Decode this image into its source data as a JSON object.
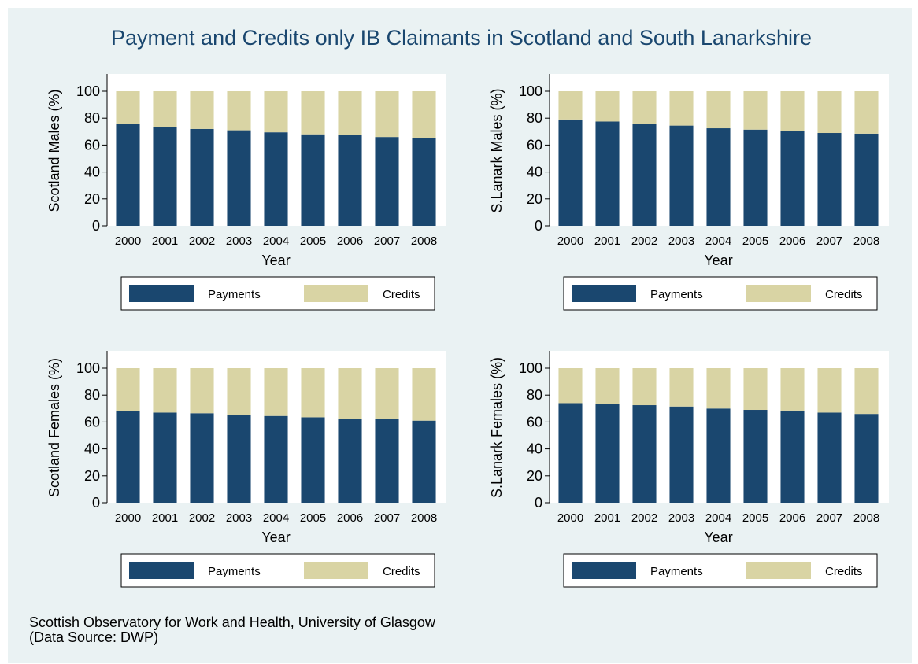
{
  "page": {
    "title": "Payment and Credits only IB Claimants in Scotland and South Lanarkshire"
  },
  "footer": {
    "line1": "Scottish Observatory for Work and Health, University of Glasgow",
    "line2": "(Data Source: DWP)"
  },
  "colors": {
    "payments": "#1a476f",
    "credits": "#d9d4a4",
    "background": "#eaf2f3",
    "title": "#1a476f"
  },
  "chart_data": [
    {
      "type": "bar",
      "stacked": true,
      "panel": "scotland-males",
      "categories": [
        "2000",
        "2001",
        "2002",
        "2003",
        "2004",
        "2005",
        "2006",
        "2007",
        "2008"
      ],
      "series": [
        {
          "name": "Payments",
          "values": [
            75.5,
            73.5,
            72,
            71,
            69.5,
            68,
            67.5,
            66,
            65.5
          ]
        },
        {
          "name": "Credits",
          "values": [
            24.5,
            26.5,
            28,
            29,
            30.5,
            32,
            32.5,
            34,
            34.5
          ]
        }
      ],
      "xlabel": "Year",
      "ylabel": "Scotland Males (%)",
      "yticks": [
        0,
        20,
        40,
        60,
        80,
        100
      ],
      "ylim": [
        0,
        100
      ],
      "legend": "bottom"
    },
    {
      "type": "bar",
      "stacked": true,
      "panel": "slanark-males",
      "categories": [
        "2000",
        "2001",
        "2002",
        "2003",
        "2004",
        "2005",
        "2006",
        "2007",
        "2008"
      ],
      "series": [
        {
          "name": "Payments",
          "values": [
            79,
            77.5,
            76,
            74.5,
            72.5,
            71.5,
            70.5,
            69,
            68.5
          ]
        },
        {
          "name": "Credits",
          "values": [
            21,
            22.5,
            24,
            25.5,
            27.5,
            28.5,
            29.5,
            31,
            31.5
          ]
        }
      ],
      "xlabel": "Year",
      "ylabel": "S.Lanark Males (%)",
      "yticks": [
        0,
        20,
        40,
        60,
        80,
        100
      ],
      "ylim": [
        0,
        100
      ],
      "legend": "bottom"
    },
    {
      "type": "bar",
      "stacked": true,
      "panel": "scotland-females",
      "categories": [
        "2000",
        "2001",
        "2002",
        "2003",
        "2004",
        "2005",
        "2006",
        "2007",
        "2008"
      ],
      "series": [
        {
          "name": "Payments",
          "values": [
            68,
            67,
            66.5,
            65,
            64.5,
            63.5,
            62.5,
            62,
            61
          ]
        },
        {
          "name": "Credits",
          "values": [
            32,
            33,
            33.5,
            35,
            35.5,
            36.5,
            37.5,
            38,
            39
          ]
        }
      ],
      "xlabel": "Year",
      "ylabel": "Scotland Females (%)",
      "yticks": [
        0,
        20,
        40,
        60,
        80,
        100
      ],
      "ylim": [
        0,
        100
      ],
      "legend": "bottom"
    },
    {
      "type": "bar",
      "stacked": true,
      "panel": "slanark-females",
      "categories": [
        "2000",
        "2001",
        "2002",
        "2003",
        "2004",
        "2005",
        "2006",
        "2007",
        "2008"
      ],
      "series": [
        {
          "name": "Payments",
          "values": [
            74,
            73.5,
            72.5,
            71.5,
            70,
            69,
            68.5,
            67,
            66
          ]
        },
        {
          "name": "Credits",
          "values": [
            26,
            26.5,
            27.5,
            28.5,
            30,
            31,
            31.5,
            33,
            34
          ]
        }
      ],
      "xlabel": "Year",
      "ylabel": "S.Lanark Females (%)",
      "yticks": [
        0,
        20,
        40,
        60,
        80,
        100
      ],
      "ylim": [
        0,
        100
      ],
      "legend": "bottom"
    }
  ]
}
